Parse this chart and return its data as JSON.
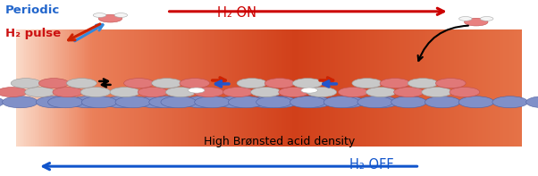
{
  "fig_width": 6.02,
  "fig_height": 1.97,
  "dpi": 100,
  "bg_color": "#ffffff",
  "text_periodic": "Periodic",
  "text_h2_pulse": "H₂ pulse",
  "text_h2_on": "H₂ ON",
  "text_h2_off": "H₂ OFF",
  "text_bronsted": "High Brønsted acid density",
  "blue_label_color": "#2266cc",
  "red_label_color": "#cc1111",
  "arrow_red_color": "#cc0000",
  "arrow_blue_color": "#1155cc",
  "ball_blue": "#8090c8",
  "ball_blue_edge": "#5060a0",
  "ball_pink": "#e07878",
  "ball_pink_edge": "#c05050",
  "ball_gray": "#c8c8c8",
  "ball_gray_edge": "#999999",
  "ball_white": "#f0f0f0",
  "panel_l": 0.03,
  "panel_r": 0.97,
  "panel_b": 0.17,
  "panel_t": 0.83
}
